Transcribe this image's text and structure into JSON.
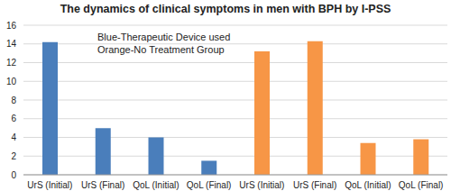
{
  "chart_data": {
    "type": "bar",
    "title": "The dynamics of clinical symptoms in men with BPH by I-PSS",
    "categories": [
      "UrS (Initial)",
      "UrS (Final)",
      "QoL (Initial)",
      "QoL (Final)",
      "UrS (Initial)",
      "UrS (Final)",
      "QoL (Initial)",
      "QoL (Final)"
    ],
    "values": [
      14.2,
      5.0,
      4.0,
      1.5,
      13.2,
      14.3,
      3.4,
      3.8
    ],
    "colors": [
      "#4a7ebb",
      "#4a7ebb",
      "#4a7ebb",
      "#4a7ebb",
      "#f79646",
      "#f79646",
      "#f79646",
      "#f79646"
    ],
    "ylim": [
      0,
      16
    ],
    "yticks": [
      0,
      2,
      4,
      6,
      8,
      10,
      12,
      14,
      16
    ],
    "grid": true,
    "annotations": [
      "Blue-Therapeutic Device used",
      "Orange-No Treatment Group"
    ]
  }
}
